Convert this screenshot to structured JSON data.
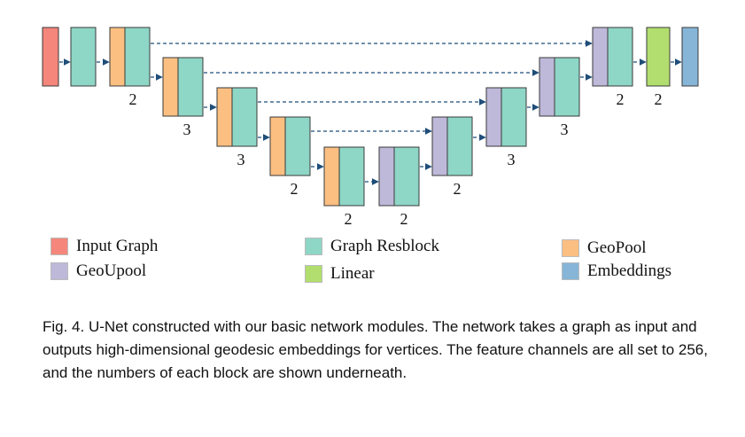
{
  "colors": {
    "input_graph": "#F4867B",
    "graph_resblock": "#8ED6C6",
    "geopool": "#FBBF82",
    "geoupool": "#BEB8D9",
    "linear": "#B1DE6E",
    "embeddings": "#86B5D8",
    "stroke": "#3a3a3a",
    "arrow": "#1f4e79"
  },
  "counts": [
    "2",
    "3",
    "3",
    "2",
    "2",
    "2",
    "2",
    "3",
    "3",
    "2",
    "2"
  ],
  "legend": {
    "input_graph": "Input Graph",
    "graph_resblock": "Graph Resblock",
    "geopool": "GeoPool",
    "geoupool": "GeoUpool",
    "linear": "Linear",
    "embeddings": "Embeddings"
  },
  "caption": "Fig. 4.  U-Net constructed with our basic network modules. The network takes a graph as input and outputs high-dimensional geodesic embeddings for vertices. The feature channels are all set to 256, and the numbers of each block are shown underneath."
}
